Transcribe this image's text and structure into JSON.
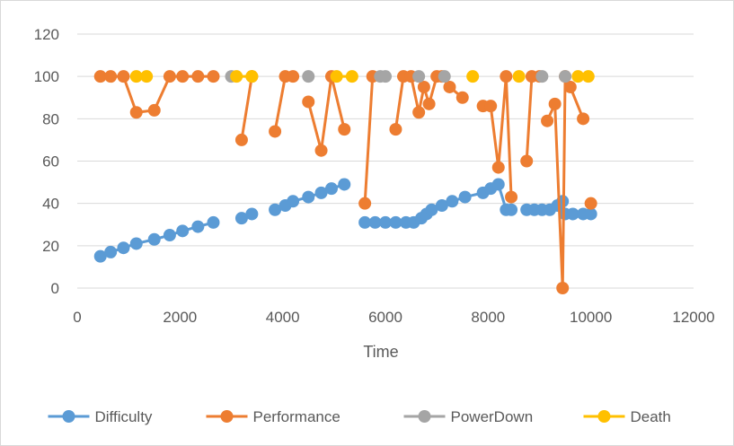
{
  "chart_data": {
    "type": "scatter",
    "title": "",
    "xlabel": "Time",
    "ylabel": "",
    "xlim": [
      0,
      12000
    ],
    "ylim": [
      0,
      120
    ],
    "x_ticks": [
      "0",
      "2000",
      "4000",
      "6000",
      "8000",
      "10000",
      "12000"
    ],
    "y_ticks": [
      "0",
      "20",
      "40",
      "60",
      "80",
      "100",
      "120"
    ],
    "grid": "horizontal",
    "legend_position": "bottom",
    "colors": {
      "Difficulty": "#5b9bd5",
      "Performance": "#ed7d31",
      "PowerDown": "#a5a5a5",
      "Death": "#ffc000"
    },
    "series": [
      {
        "name": "Difficulty",
        "marker": "circle",
        "segments": [
          [
            [
              450,
              15
            ],
            [
              650,
              17
            ],
            [
              900,
              19
            ],
            [
              1150,
              21
            ],
            [
              1500,
              23
            ],
            [
              1800,
              25
            ],
            [
              2050,
              27
            ],
            [
              2350,
              29
            ],
            [
              2650,
              31
            ]
          ],
          [
            [
              3200,
              33
            ],
            [
              3400,
              35
            ]
          ],
          [
            [
              3850,
              37
            ],
            [
              4050,
              39
            ],
            [
              4200,
              41
            ],
            [
              4500,
              43
            ],
            [
              4750,
              45
            ],
            [
              4950,
              47
            ],
            [
              5200,
              49
            ]
          ],
          [
            [
              5600,
              31
            ],
            [
              5800,
              31
            ],
            [
              6000,
              31
            ],
            [
              6200,
              31
            ],
            [
              6400,
              31
            ],
            [
              6550,
              31
            ],
            [
              6700,
              33
            ],
            [
              6800,
              35
            ],
            [
              6900,
              37
            ],
            [
              7100,
              39
            ],
            [
              7300,
              41
            ],
            [
              7550,
              43
            ],
            [
              7900,
              45
            ],
            [
              8050,
              47
            ],
            [
              8200,
              49
            ],
            [
              8350,
              37
            ],
            [
              8450,
              37
            ]
          ],
          [
            [
              8750,
              37
            ],
            [
              8900,
              37
            ],
            [
              9050,
              37
            ],
            [
              9200,
              37
            ],
            [
              9350,
              39
            ],
            [
              9450,
              41
            ],
            [
              9500,
              35
            ],
            [
              9650,
              35
            ],
            [
              9850,
              35
            ],
            [
              10000,
              35
            ]
          ]
        ]
      },
      {
        "name": "Performance",
        "marker": "circle",
        "segments": [
          [
            [
              450,
              100
            ],
            [
              650,
              100
            ],
            [
              900,
              100
            ],
            [
              1150,
              83
            ],
            [
              1500,
              84
            ],
            [
              1800,
              100
            ],
            [
              2050,
              100
            ],
            [
              2350,
              100
            ],
            [
              2650,
              100
            ]
          ],
          [
            [
              3200,
              70
            ],
            [
              3400,
              100
            ]
          ],
          [
            [
              3850,
              74
            ],
            [
              4050,
              100
            ],
            [
              4200,
              100
            ]
          ],
          [
            [
              4500,
              88
            ],
            [
              4750,
              65
            ],
            [
              4950,
              100
            ],
            [
              5200,
              75
            ]
          ],
          [
            [
              5600,
              40
            ],
            [
              5750,
              100
            ]
          ],
          [
            [
              6200,
              75
            ],
            [
              6350,
              100
            ],
            [
              6500,
              100
            ],
            [
              6650,
              83
            ],
            [
              6750,
              95
            ],
            [
              6850,
              87
            ],
            [
              7000,
              100
            ],
            [
              7100,
              100
            ],
            [
              7250,
              95
            ],
            [
              7500,
              90
            ]
          ],
          [
            [
              7900,
              86
            ],
            [
              8050,
              86
            ],
            [
              8200,
              57
            ],
            [
              8350,
              100
            ],
            [
              8450,
              43
            ]
          ],
          [
            [
              8750,
              60
            ],
            [
              8850,
              100
            ],
            [
              9000,
              100
            ]
          ],
          [
            [
              9150,
              79
            ],
            [
              9300,
              87
            ],
            [
              9450,
              0
            ],
            [
              9500,
              100
            ],
            [
              9600,
              95
            ],
            [
              9850,
              80
            ]
          ],
          [
            [
              10000,
              40
            ]
          ]
        ]
      },
      {
        "name": "PowerDown",
        "marker": "circle",
        "segments": [
          [
            [
              3000,
              100
            ]
          ],
          [
            [
              4500,
              100
            ]
          ],
          [
            [
              5900,
              100
            ],
            [
              6000,
              100
            ]
          ],
          [
            [
              6650,
              100
            ]
          ],
          [
            [
              7150,
              100
            ]
          ],
          [
            [
              9050,
              100
            ]
          ],
          [
            [
              9500,
              100
            ]
          ]
        ]
      },
      {
        "name": "Death",
        "marker": "circle",
        "segments": [
          [
            [
              1150,
              100
            ],
            [
              1350,
              100
            ]
          ],
          [
            [
              3100,
              100
            ],
            [
              3400,
              100
            ]
          ],
          [
            [
              5050,
              100
            ],
            [
              5350,
              100
            ]
          ],
          [
            [
              7700,
              100
            ]
          ],
          [
            [
              8600,
              100
            ]
          ],
          [
            [
              9750,
              100
            ],
            [
              9950,
              100
            ]
          ]
        ]
      }
    ]
  }
}
